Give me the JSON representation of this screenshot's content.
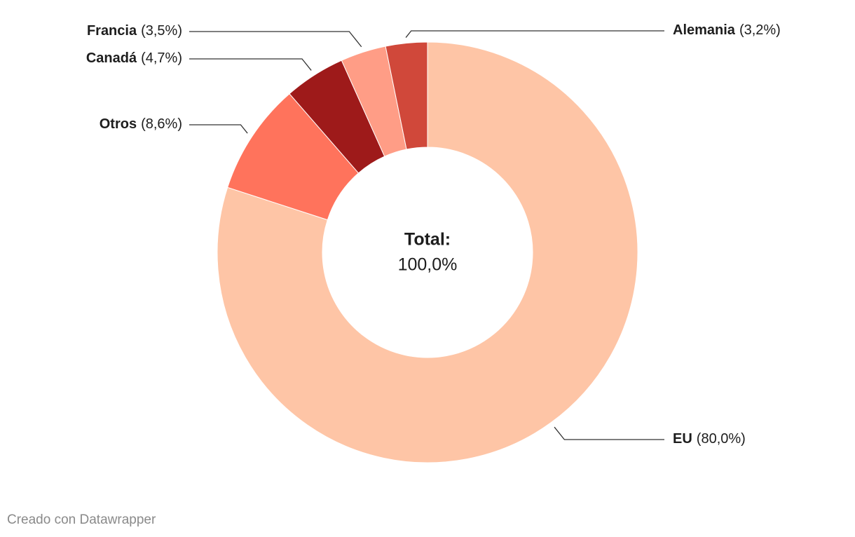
{
  "chart_data": {
    "type": "donut",
    "categories": [
      "EU",
      "Otros",
      "Canadá",
      "Francia",
      "Alemania"
    ],
    "values": [
      80.0,
      8.6,
      4.7,
      3.5,
      3.2
    ],
    "value_labels": [
      "(80,0%)",
      "(8,6%)",
      "(4,7%)",
      "(3,5%)",
      "(3,2%)"
    ],
    "colors": [
      "#fec5a6",
      "#ff735c",
      "#9e1a1a",
      "#ff9d86",
      "#d0483a"
    ],
    "center_title": "Total:",
    "center_value": "100,0%",
    "footer": "Creado con Datawrapper"
  }
}
